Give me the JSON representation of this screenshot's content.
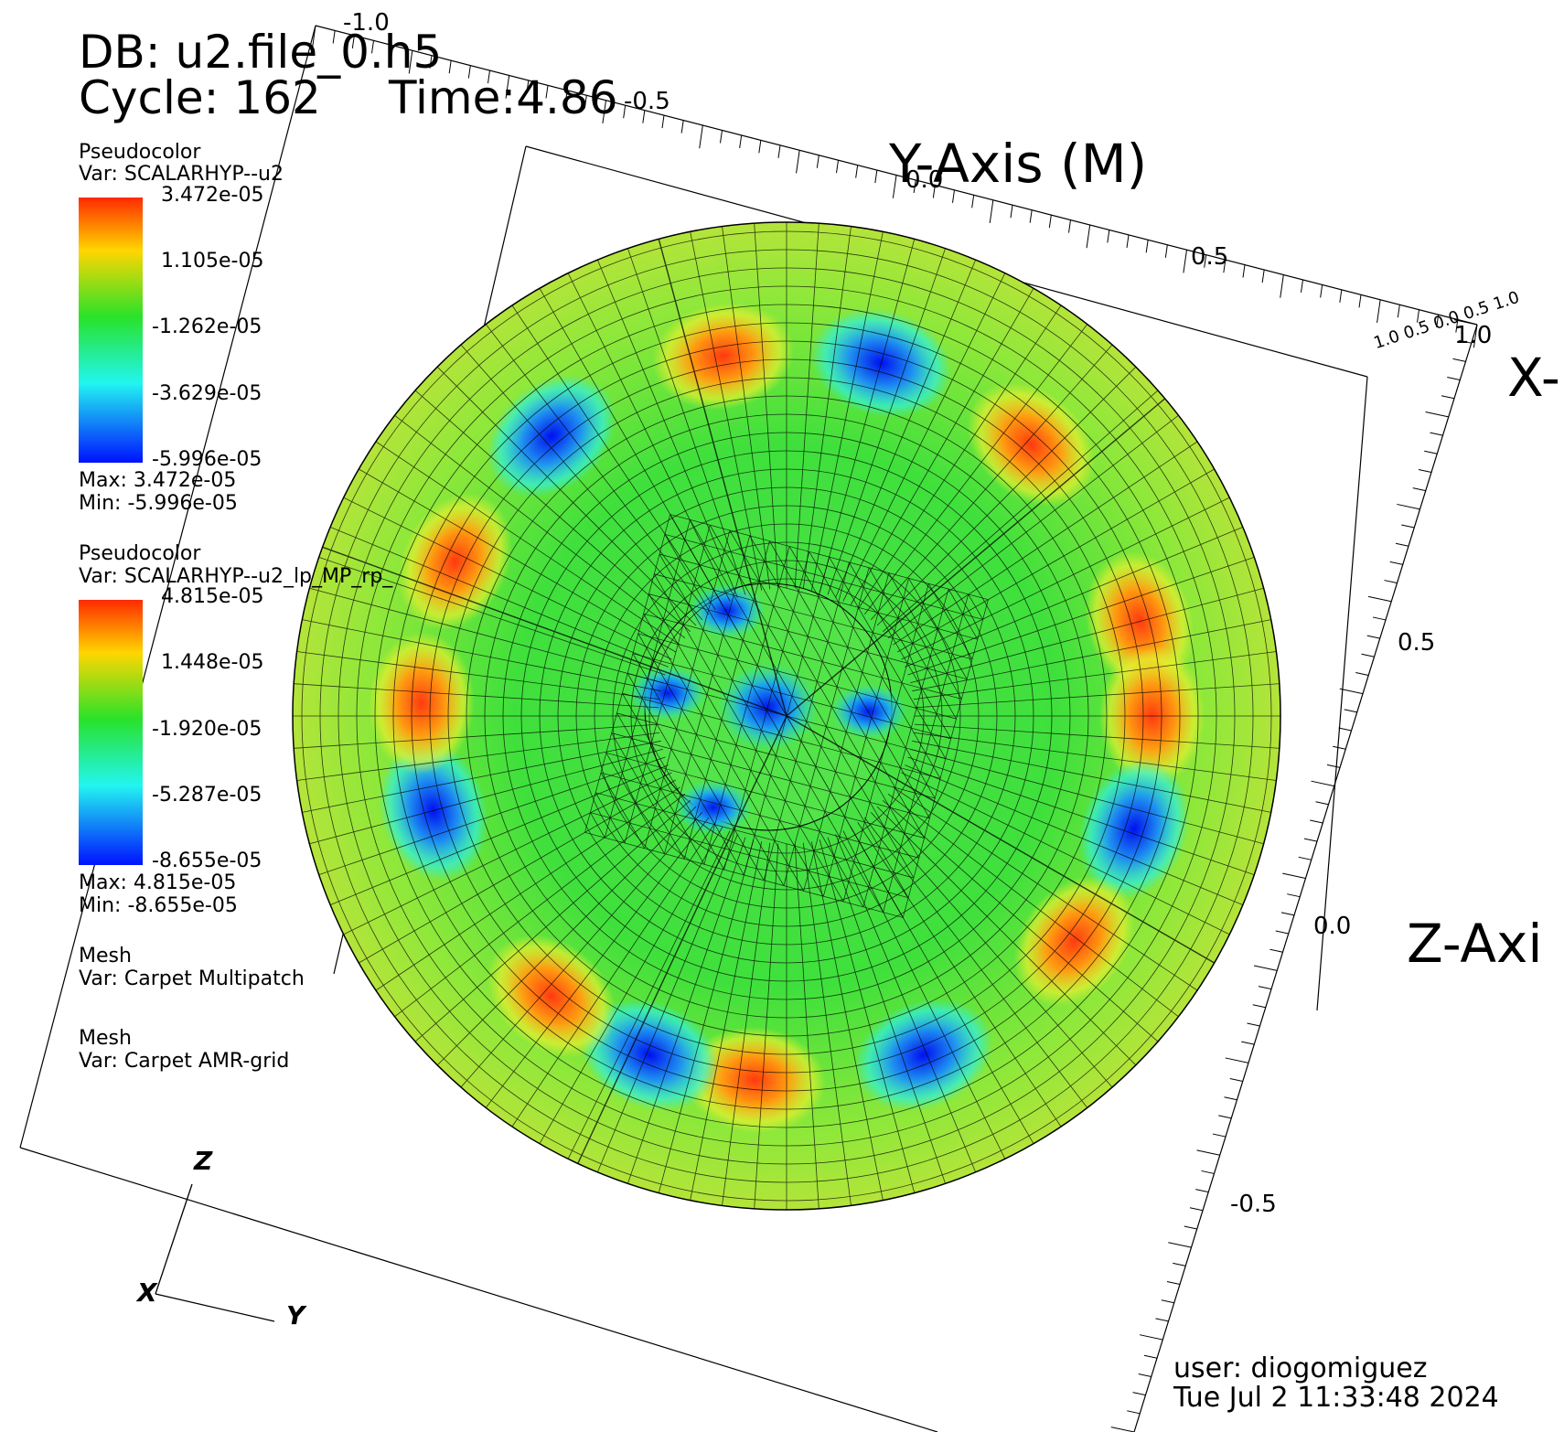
{
  "header": {
    "db_label": "DB: u2.file_0.h5",
    "cycle_label": "Cycle: 162",
    "time_label": "Time:4.86"
  },
  "legend1": {
    "plot_type": "Pseudocolor",
    "var": "Var: SCALARHYP--u2",
    "ticks": [
      "3.472e-05",
      "1.105e-05",
      "-1.262e-05",
      "-3.629e-05",
      "-5.996e-05"
    ],
    "max": "Max:  3.472e-05",
    "min": "Min: -5.996e-05"
  },
  "legend2": {
    "plot_type": "Pseudocolor",
    "var": "Var: SCALARHYP--u2_lp_MP_rp_",
    "ticks": [
      "4.815e-05",
      "1.448e-05",
      "-1.920e-05",
      "-5.287e-05",
      "-8.655e-05"
    ],
    "max": "Max:  4.815e-05",
    "min": "Min: -8.655e-05"
  },
  "mesh1": {
    "plot_type": "Mesh",
    "var": "Var: Carpet Multipatch"
  },
  "mesh2": {
    "plot_type": "Mesh",
    "var": "Var: Carpet AMR-grid"
  },
  "axes": {
    "y_title": "Y-Axis (M)",
    "x_title": "X-",
    "z_title": "Z-Axi",
    "y_ticks": [
      "-1.0",
      "-0.5",
      "0.0",
      "0.5",
      "1.0"
    ],
    "z_ticks": [
      "0.5",
      "0.0",
      "-0.5"
    ],
    "x_tick_cluster": "1.0 0.5 0.0 0.5 1.0"
  },
  "triad": {
    "z": "Z",
    "x": "X",
    "y": "Y"
  },
  "footer": {
    "user": "user: diogomiguez",
    "date": "Tue Jul  2 11:33:48 2024"
  },
  "colors": {
    "red": "#e8401c",
    "orange": "#f5a020",
    "yellow": "#f0f020",
    "green": "#30e030",
    "cyan": "#20f0f0",
    "blue": "#1020e8"
  }
}
